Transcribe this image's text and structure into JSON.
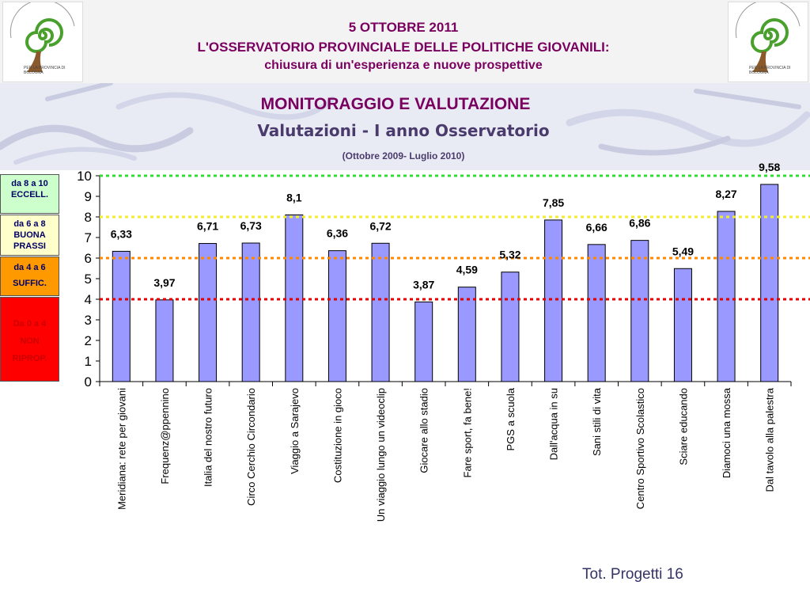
{
  "header": {
    "date": "5  OTTOBRE 2011",
    "org": "L'OSSERVATORIO PROVINCIALE DELLE POLITICHE GIOVANILI:",
    "subtitle": "chiusura di un'esperienza e nuove prospettive",
    "logo_arc_text": "OSSERVATORIO POLITICHE GIOVANILI",
    "logo_caption": "PER LA PROVINCIA DI BOLOGNA"
  },
  "section_title": "MONITORAGGIO E VALUTAZIONE",
  "legend": [
    {
      "line1": "da 8 a 10",
      "line2": "ECCELL.",
      "color": "#ccffcc",
      "threshold": 8,
      "line_color": "#33dd33"
    },
    {
      "line1": "da 6 a 8",
      "line2": "BUONA",
      "line3": "PRASSI",
      "color": "#ffffcc",
      "threshold": 8,
      "line_color": "#eeee33"
    },
    {
      "line1": "da 4 a 6",
      "line2": "SUFFIC.",
      "color": "#ff9900",
      "threshold": 6,
      "line_color": "#ff8800"
    },
    {
      "line1": "Da 0 a 4",
      "line2": "NON",
      "line3": "RIPROP.",
      "color": "#ff0000",
      "threshold": 4,
      "line_color": "#dd0000"
    }
  ],
  "chart_data": {
    "type": "bar",
    "title": "Valutazioni - I anno Osservatorio",
    "subtitle": "(Ottobre 2009- Luglio 2010)",
    "categories": [
      "Meridiana: rete per giovani",
      "Frequenz@ppennino",
      "Italia del nostro futuro",
      "Circo Cerchio Circondario",
      "Viaggio a Sarajevo",
      "Costituzione in gioco",
      "Un viaggio lungo un videoclip",
      "Giocare allo stadio",
      "Fare sport, fa bene!",
      "PGS a scuola",
      "Dall'acqua in su",
      "Sani stili di vita",
      "Centro Sportivo Scolastico",
      "Sciare educando",
      "Diamoci una mossa",
      "Dal tavolo alla palestra"
    ],
    "values": [
      6.33,
      3.97,
      6.71,
      6.73,
      8.1,
      6.36,
      6.72,
      3.87,
      4.59,
      5.32,
      7.85,
      6.66,
      6.86,
      5.49,
      8.27,
      9.58
    ],
    "value_labels": [
      "6,33",
      "3,97",
      "6,71",
      "6,73",
      "8,1",
      "6,36",
      "6,72",
      "3,87",
      "4,59",
      "5,32",
      "7,85",
      "6,66",
      "6,86",
      "5,49",
      "8,27",
      "9,58"
    ],
    "y_ticks": [
      "0",
      "1",
      "2",
      "3",
      "4",
      "5",
      "6",
      "7",
      "8",
      "9",
      "10"
    ],
    "ylim": [
      0,
      10
    ],
    "bar_color": "#9999ff",
    "thresholds": [
      {
        "value": 10,
        "color": "#33dd33"
      },
      {
        "value": 8,
        "color": "#eeee33"
      },
      {
        "value": 6,
        "color": "#ff8800"
      },
      {
        "value": 4,
        "color": "#dd0000"
      }
    ]
  },
  "footer": {
    "total": "Tot. Progetti 16"
  }
}
